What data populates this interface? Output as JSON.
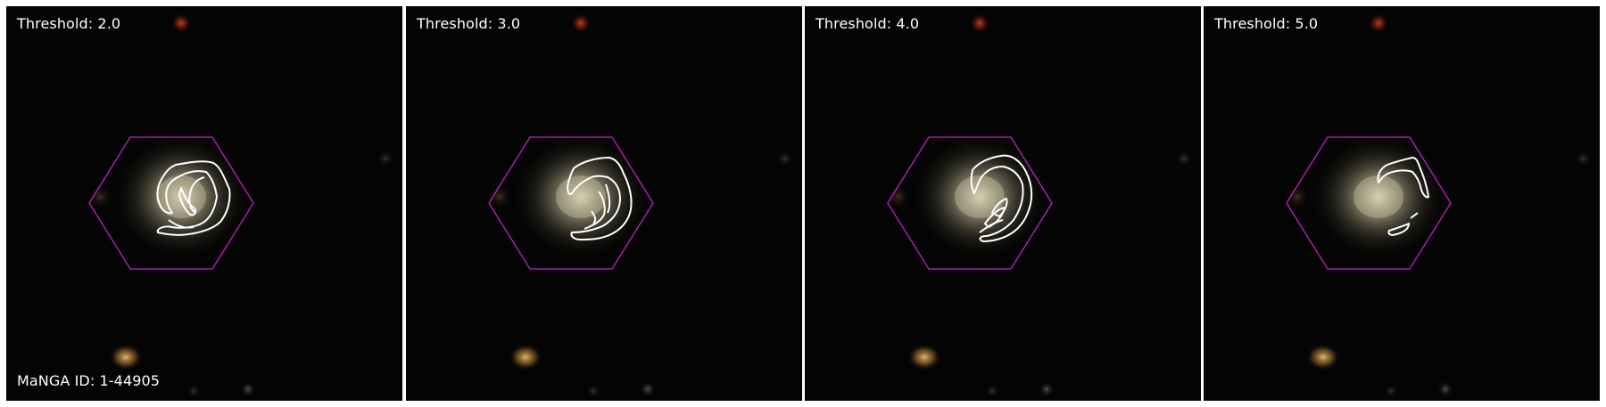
{
  "figure": {
    "panels": [
      {
        "threshold_label": "Threshold: 2.0",
        "threshold": 2.0
      },
      {
        "threshold_label": "Threshold: 3.0",
        "threshold": 3.0
      },
      {
        "threshold_label": "Threshold: 4.0",
        "threshold": 4.0
      },
      {
        "threshold_label": "Threshold: 5.0",
        "threshold": 5.0
      }
    ],
    "manga_id_label": "MaNGA ID: 1-44905"
  },
  "colors": {
    "background": "#050404",
    "hexagon": "#c020c0",
    "contour": "#ffffff",
    "galaxy_core": "#dcd3b8",
    "label_text": "#ffffff"
  }
}
